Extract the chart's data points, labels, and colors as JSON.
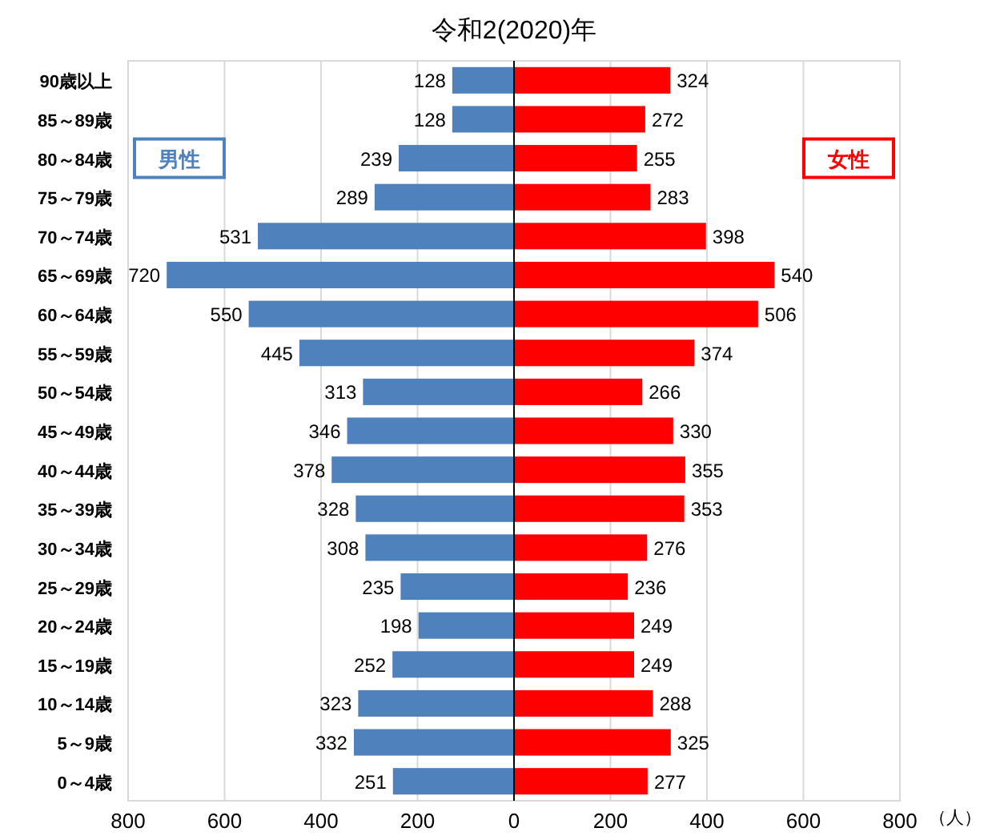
{
  "chart_data": [
    {
      "type": "bar",
      "orientation": "horizontal",
      "title": "令和2(2020)年",
      "data_labels": true,
      "categories": [
        "90歳以上",
        "85～89歳",
        "80～84歳",
        "75～79歳",
        "70～74歳",
        "65～69歳",
        "60～64歳",
        "55～59歳",
        "50～54歳",
        "45～49歳",
        "40～44歳",
        "35～39歳",
        "30～34歳",
        "25～29歳",
        "20～24歳",
        "15～19歳",
        "10～14歳",
        "5～9歳",
        "0～4歳"
      ],
      "series": [
        {
          "name": "男性",
          "color": "#4f81bd",
          "values": [
            128,
            128,
            239,
            289,
            531,
            720,
            550,
            445,
            313,
            346,
            378,
            328,
            308,
            235,
            198,
            252,
            323,
            332,
            251
          ]
        }
      ],
      "xlim": [
        800,
        0
      ],
      "xticks": [
        800,
        600,
        400,
        200,
        {
          "value": 0,
          "label": null
        }
      ],
      "grid": "x"
    },
    {
      "type": "bar",
      "orientation": "horizontal",
      "xlabel": "（人）",
      "data_labels": true,
      "tick_labels": "x",
      "categories": [
        "90歳以上",
        "85～89歳",
        "80～84歳",
        "75～79歳",
        "70～74歳",
        "65～69歳",
        "60～64歳",
        "55～59歳",
        "50～54歳",
        "45～49歳",
        "40～44歳",
        "35～39歳",
        "30～34歳",
        "25～29歳",
        "20～24歳",
        "15～19歳",
        "10～14歳",
        "5～9歳",
        "0～4歳"
      ],
      "series": [
        {
          "name": "女性",
          "color": "#ff0000",
          "values": [
            324,
            272,
            255,
            283,
            398,
            540,
            506,
            374,
            266,
            330,
            355,
            353,
            276,
            236,
            249,
            249,
            288,
            325,
            277
          ]
        }
      ],
      "xlim": [
        0,
        800
      ],
      "xticks": [
        0,
        200,
        400,
        600,
        800
      ],
      "grid": "x"
    }
  ]
}
